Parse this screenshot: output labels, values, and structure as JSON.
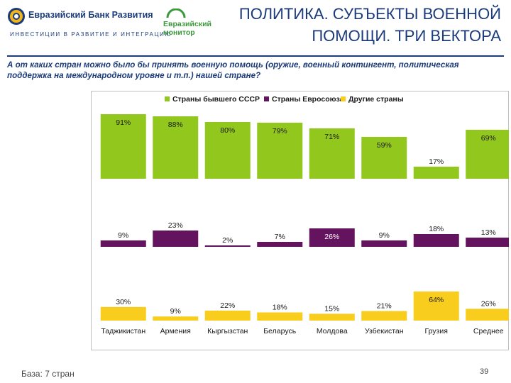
{
  "brand": {
    "name": "Евразийский Банк Развития",
    "tagline": "ИНВЕСТИЦИИ В РАЗВИТИЕ И ИНТЕГРАЦИЮ",
    "monitor_line1": "Евразийский",
    "monitor_line2": "монитор"
  },
  "slide": {
    "title_line1": "ПОЛИТИКА. СУБЪЕКТЫ ВОЕННОЙ",
    "title_line2": "ПОМОЩИ. ТРИ ВЕКТОРА",
    "question": "А от каких стран можно было бы принять военную помощь (оружие, военный контингент, политическая поддержка на международном уровне и т.п.) нашей стране?",
    "base": "База: 7 стран",
    "page_number": "39"
  },
  "chart_data": {
    "type": "bar",
    "layout": "three stacked panels, one per series",
    "categories": [
      "Таджикистан",
      "Армения",
      "Кыргызстан",
      "Беларусь",
      "Молдова",
      "Узбекистан",
      "Грузия",
      "Среднее"
    ],
    "series": [
      {
        "name": "Страны бывшего СССР",
        "color": "#92c81e",
        "values": [
          91,
          88,
          80,
          79,
          71,
          59,
          17,
          69
        ],
        "labels": [
          "91%",
          "88%",
          "80%",
          "79%",
          "71%",
          "59%",
          "17%",
          "69%"
        ]
      },
      {
        "name": "Страны Евросоюза",
        "color": "#64135e",
        "values": [
          9,
          23,
          2,
          7,
          26,
          9,
          18,
          13
        ],
        "labels": [
          "9%",
          "23%",
          "2%",
          "7%",
          "26%",
          "9%",
          "18%",
          "13%"
        ]
      },
      {
        "name": "Другие страны",
        "color": "#f9cd1d",
        "values": [
          30,
          9,
          22,
          18,
          15,
          21,
          64,
          26
        ],
        "labels": [
          "30%",
          "9%",
          "22%",
          "18%",
          "15%",
          "21%",
          "64%",
          "26%"
        ]
      }
    ],
    "ylim": [
      0,
      100
    ],
    "legend": "top-center",
    "grid": false
  }
}
